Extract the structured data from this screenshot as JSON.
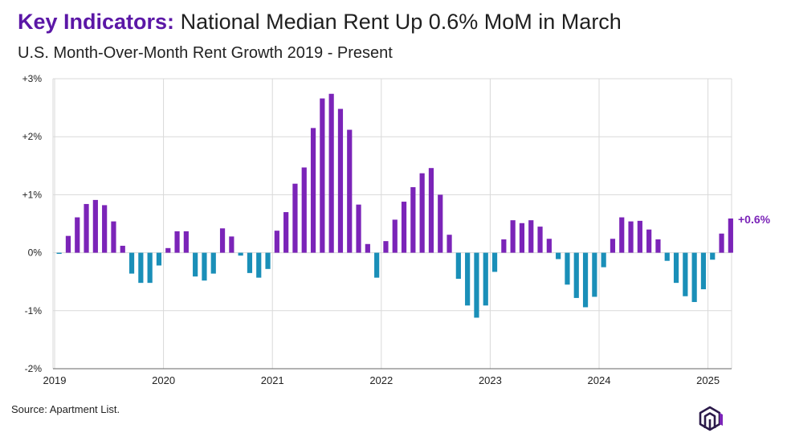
{
  "header": {
    "title_lead": "Key Indicators:",
    "title_rest": "National Median Rent Up 0.6% MoM in March",
    "subtitle": "U.S. Month-Over-Month Rent Growth 2019 - Present"
  },
  "footer": {
    "source": "Source: Apartment List."
  },
  "colors": {
    "positive": "#7b24b8",
    "negative": "#1a8fb8",
    "accent": "#7b24b8",
    "grid": "#d9d9d9",
    "axis": "#555555"
  },
  "chart_data": {
    "type": "bar",
    "title": "U.S. Month-Over-Month Rent Growth 2019 - Present",
    "xlabel": "",
    "ylabel": "",
    "ylim": [
      -2,
      3
    ],
    "yticks": [
      {
        "value": 3,
        "label": "+3%"
      },
      {
        "value": 2,
        "label": "+2%"
      },
      {
        "value": 1,
        "label": "+1%"
      },
      {
        "value": 0,
        "label": "0%"
      },
      {
        "value": -1,
        "label": "-1%"
      },
      {
        "value": -2,
        "label": "-2%"
      }
    ],
    "xticks": [
      {
        "index": 0,
        "label": "2019"
      },
      {
        "index": 12,
        "label": "2020"
      },
      {
        "index": 24,
        "label": "2021"
      },
      {
        "index": 36,
        "label": "2022"
      },
      {
        "index": 48,
        "label": "2023"
      },
      {
        "index": 60,
        "label": "2024"
      },
      {
        "index": 72,
        "label": "2025"
      }
    ],
    "start": "2019-01",
    "values": [
      -0.02,
      0.29,
      0.61,
      0.84,
      0.91,
      0.82,
      0.54,
      0.12,
      -0.36,
      -0.52,
      -0.52,
      -0.22,
      0.08,
      0.37,
      0.37,
      -0.41,
      -0.48,
      -0.36,
      0.42,
      0.28,
      -0.05,
      -0.35,
      -0.43,
      -0.28,
      0.38,
      0.7,
      1.19,
      1.47,
      2.15,
      2.66,
      2.74,
      2.48,
      2.12,
      0.83,
      0.15,
      -0.43,
      0.2,
      0.57,
      0.88,
      1.13,
      1.37,
      1.46,
      1.0,
      0.31,
      -0.45,
      -0.91,
      -1.12,
      -0.91,
      -0.33,
      0.23,
      0.56,
      0.51,
      0.56,
      0.45,
      0.24,
      -0.11,
      -0.55,
      -0.78,
      -0.94,
      -0.76,
      -0.25,
      0.24,
      0.61,
      0.54,
      0.55,
      0.4,
      0.23,
      -0.14,
      -0.52,
      -0.75,
      -0.85,
      -0.63,
      -0.12,
      0.33,
      0.59
    ],
    "annotation": {
      "index": 74,
      "label": "+0.6%"
    }
  }
}
